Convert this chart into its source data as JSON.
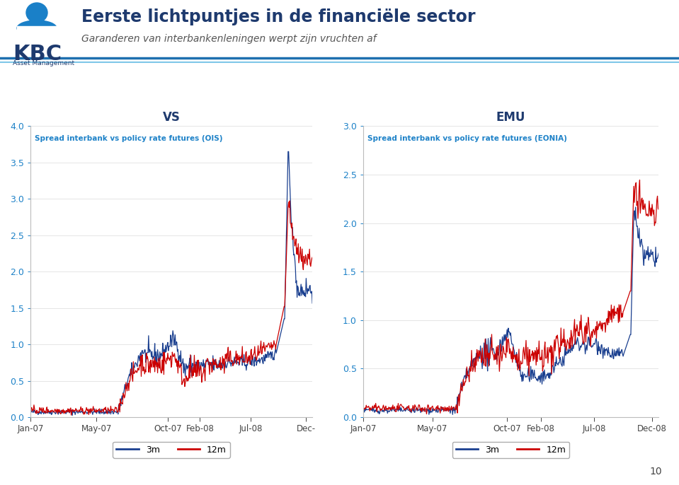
{
  "title_main": "Eerste lichtpuntjes in de financiële sector",
  "subtitle_main": "Garanderen van interbankenleningen werpt zijn vruchten af",
  "left_title": "VS",
  "right_title": "EMU",
  "left_subtitle": "Spread interbank vs policy rate futures (OIS)",
  "right_subtitle": "Spread interbank vs policy rate futures (EONIA)",
  "legend_3m": "3m",
  "legend_12m": "12m",
  "color_3m": "#1a3f8f",
  "color_12m": "#cc0000",
  "header_line_color1": "#1e6faf",
  "header_line_color2": "#7fc7e8",
  "axis_label_color": "#1e82c8",
  "title_color": "#1e3a6e",
  "left_ylim": [
    0.0,
    4.0
  ],
  "right_ylim": [
    0.0,
    3.0
  ],
  "left_yticks": [
    0.0,
    0.5,
    1.0,
    1.5,
    2.0,
    2.5,
    3.0,
    3.5,
    4.0
  ],
  "right_yticks": [
    0.0,
    0.5,
    1.0,
    1.5,
    2.0,
    2.5,
    3.0
  ],
  "xtick_labels_left": [
    "Jan-07",
    "May-07",
    "Oct-07",
    "Feb-08",
    "Jul-08",
    "Dec-"
  ],
  "xtick_labels_right": [
    "Jan-07",
    "May-07",
    "Oct-07",
    "Feb-08",
    "Jul-08",
    "Dec-08"
  ],
  "page_number": "10",
  "kbc_blue": "#1a80c8",
  "kbc_dark": "#1e3a6e"
}
